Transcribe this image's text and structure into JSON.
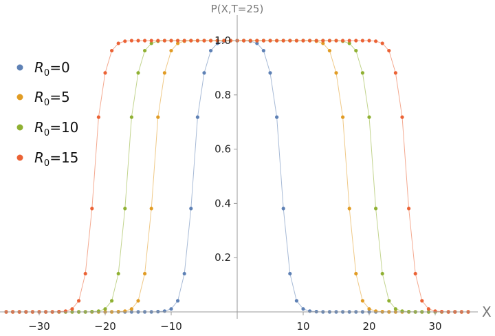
{
  "chart_data": {
    "type": "scatter",
    "title": "P(X,T=25)",
    "xlabel": "X",
    "ylabel": "",
    "xlim": [
      -36,
      36
    ],
    "ylim": [
      0,
      1.02
    ],
    "x_ticks": [
      -30,
      -20,
      -10,
      10,
      20,
      30
    ],
    "x_tick_labels": [
      "−30",
      "−20",
      "−10",
      "10",
      "20",
      "30"
    ],
    "y_ticks": [
      0.2,
      0.4,
      0.6,
      0.8,
      1.0
    ],
    "y_tick_labels": [
      "0.2",
      "0.4",
      "0.6",
      "0.8",
      "1.0"
    ],
    "grid": false,
    "legend_position": "left",
    "x": [
      -35,
      -34,
      -33,
      -32,
      -31,
      -30,
      -29,
      -28,
      -27,
      -26,
      -25,
      -24,
      -23,
      -22,
      -21,
      -20,
      -19,
      -18,
      -17,
      -16,
      -15,
      -14,
      -13,
      -12,
      -11,
      -10,
      -9,
      -8,
      -7,
      -6,
      -5,
      -4,
      -3,
      -2,
      -1,
      0,
      1,
      2,
      3,
      4,
      5,
      6,
      7,
      8,
      9,
      10,
      11,
      12,
      13,
      14,
      15,
      16,
      17,
      18,
      19,
      20,
      21,
      22,
      23,
      24,
      25,
      26,
      27,
      28,
      29,
      30,
      31,
      32,
      33,
      34,
      35
    ],
    "series": [
      {
        "name": "R",
        "name_sub": "0",
        "name_suffix": "=0",
        "color": "#5e81b5",
        "values": [
          0,
          0,
          0,
          0,
          0,
          0,
          0,
          0,
          0,
          0,
          0,
          0,
          0,
          0,
          0,
          0,
          0,
          0,
          0,
          0,
          0,
          0,
          0,
          0.001,
          0.003,
          0.011,
          0.041,
          0.141,
          0.381,
          0.718,
          0.881,
          0.963,
          0.99,
          0.998,
          1.0,
          1.0,
          1.0,
          0.998,
          0.99,
          0.963,
          0.881,
          0.718,
          0.381,
          0.141,
          0.041,
          0.011,
          0.003,
          0.001,
          0,
          0,
          0,
          0,
          0,
          0,
          0,
          0,
          0,
          0,
          0,
          0,
          0,
          0,
          0,
          0,
          0,
          0,
          0,
          0,
          0,
          0,
          0
        ]
      },
      {
        "name": "R",
        "name_sub": "0",
        "name_suffix": "=5",
        "color": "#e19c24",
        "values": [
          0,
          0,
          0,
          0,
          0,
          0,
          0,
          0,
          0,
          0,
          0,
          0,
          0,
          0,
          0,
          0,
          0,
          0.001,
          0.003,
          0.011,
          0.041,
          0.141,
          0.381,
          0.718,
          0.881,
          0.963,
          0.99,
          0.998,
          1.0,
          1.0,
          1.0,
          1.0,
          1.0,
          1.0,
          1.0,
          1.0,
          1.0,
          1.0,
          1.0,
          1.0,
          1.0,
          1.0,
          1.0,
          1.0,
          1.0,
          1.0,
          1.0,
          0.998,
          0.99,
          0.963,
          0.881,
          0.718,
          0.381,
          0.141,
          0.041,
          0.011,
          0.003,
          0.001,
          0,
          0,
          0,
          0,
          0,
          0,
          0,
          0,
          0,
          0,
          0,
          0,
          0
        ]
      },
      {
        "name": "R",
        "name_sub": "0",
        "name_suffix": "=10",
        "color": "#8fb032",
        "values": [
          0,
          0,
          0,
          0,
          0,
          0,
          0,
          0,
          0,
          0,
          0,
          0,
          0,
          0.001,
          0.003,
          0.011,
          0.041,
          0.141,
          0.381,
          0.718,
          0.881,
          0.963,
          0.99,
          0.998,
          1.0,
          1.0,
          1.0,
          1.0,
          1.0,
          1.0,
          1.0,
          1.0,
          1.0,
          1.0,
          1.0,
          1.0,
          1.0,
          1.0,
          1.0,
          1.0,
          1.0,
          1.0,
          1.0,
          1.0,
          1.0,
          1.0,
          1.0,
          1.0,
          1.0,
          1.0,
          1.0,
          0.998,
          0.99,
          0.963,
          0.881,
          0.718,
          0.381,
          0.141,
          0.041,
          0.011,
          0.003,
          0.001,
          0,
          0,
          0,
          0,
          0,
          0,
          0,
          0,
          0
        ]
      },
      {
        "name": "R",
        "name_sub": "0",
        "name_suffix": "=15",
        "color": "#eb6235",
        "values": [
          0,
          0,
          0,
          0,
          0,
          0,
          0,
          0,
          0.001,
          0.003,
          0.011,
          0.041,
          0.141,
          0.381,
          0.718,
          0.881,
          0.963,
          0.99,
          0.998,
          1.0,
          1.0,
          1.0,
          1.0,
          1.0,
          1.0,
          1.0,
          1.0,
          1.0,
          1.0,
          1.0,
          1.0,
          1.0,
          1.0,
          1.0,
          1.0,
          1.0,
          1.0,
          1.0,
          1.0,
          1.0,
          1.0,
          1.0,
          1.0,
          1.0,
          1.0,
          1.0,
          1.0,
          1.0,
          1.0,
          1.0,
          1.0,
          1.0,
          1.0,
          1.0,
          1.0,
          1.0,
          0.998,
          0.99,
          0.963,
          0.881,
          0.718,
          0.381,
          0.141,
          0.041,
          0.011,
          0.003,
          0.001,
          0,
          0,
          0,
          0
        ]
      }
    ]
  }
}
